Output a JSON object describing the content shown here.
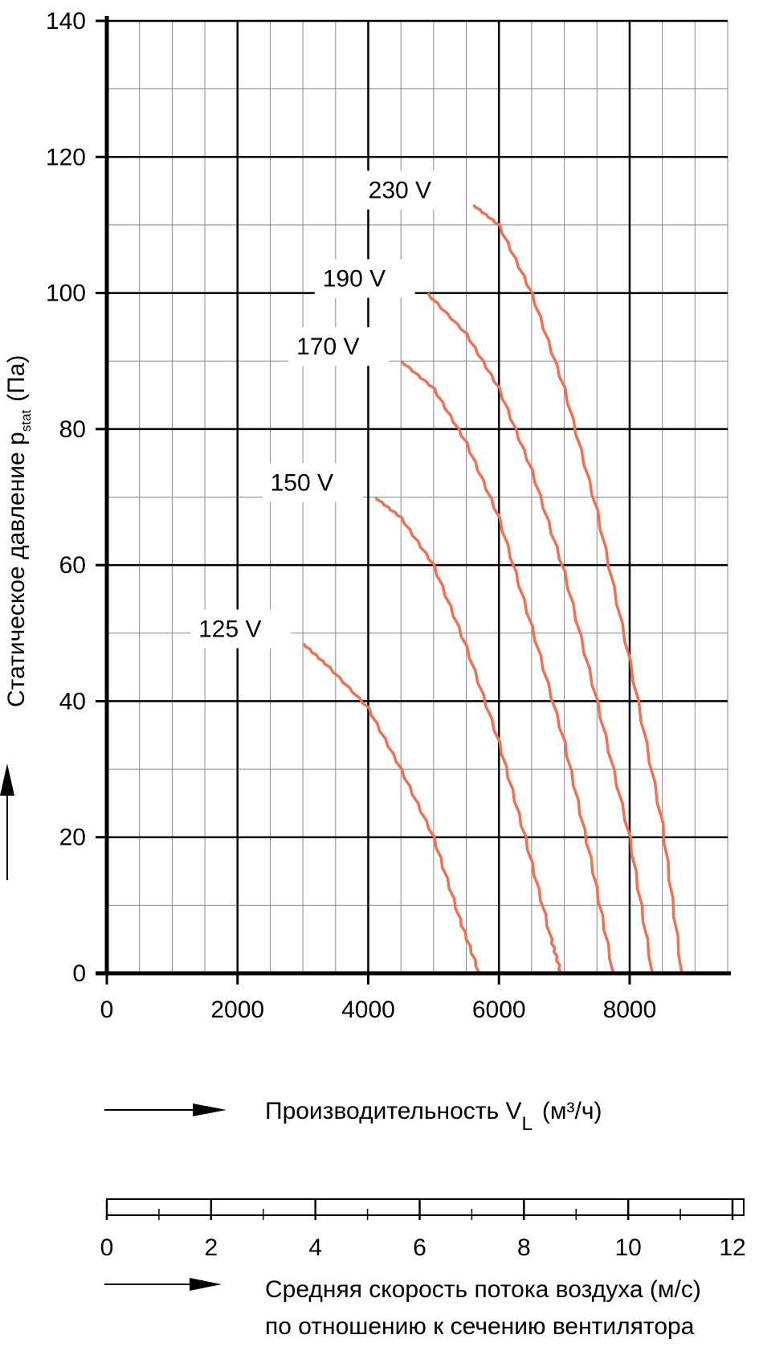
{
  "chart_data": {
    "type": "line",
    "ylabel": "Статическое давление p",
    "ylabel_sub": "stat",
    "ylabel_unit": "(Па)",
    "xlabel": "Производительность V",
    "xlabel_sub": "L",
    "xlabel_unit": "(м³/ч)",
    "xlim": [
      0,
      9500
    ],
    "ylim": [
      0,
      140
    ],
    "x_ticks": [
      0,
      2000,
      4000,
      6000,
      8000
    ],
    "y_ticks": [
      0,
      20,
      40,
      60,
      80,
      100,
      120,
      140
    ],
    "grid": true,
    "line_color": "#f07050",
    "series": [
      {
        "name": "125 V",
        "x": [
          3000,
          3400,
          4000,
          4500,
          5000,
          5400,
          5700
        ],
        "y": [
          48.5,
          45,
          39,
          30,
          20,
          8,
          0
        ]
      },
      {
        "name": "150 V",
        "x": [
          4100,
          4500,
          5000,
          5500,
          6000,
          6400,
          6800,
          6950
        ],
        "y": [
          70,
          67,
          60,
          48,
          34,
          20,
          5,
          0
        ]
      },
      {
        "name": "170 V",
        "x": [
          4500,
          5000,
          5500,
          6000,
          6500,
          7000,
          7400,
          7750
        ],
        "y": [
          90,
          86,
          78,
          67,
          51,
          34,
          17,
          0
        ]
      },
      {
        "name": "190 V",
        "x": [
          4900,
          5500,
          6000,
          6500,
          7000,
          7500,
          8000,
          8350
        ],
        "y": [
          100,
          94,
          86,
          74,
          59,
          40,
          20,
          0
        ]
      },
      {
        "name": "230 V",
        "x": [
          5600,
          6000,
          6500,
          7000,
          7500,
          8000,
          8500,
          8800
        ],
        "y": [
          113,
          110,
          100,
          86,
          68,
          46,
          22,
          0
        ]
      }
    ],
    "secondary_axis": {
      "label_line1": "Средняя скорость потока воздуха (м/с)",
      "label_line2": "по отношению к сечению вентилятора",
      "range": [
        0,
        12
      ],
      "ticks": [
        0,
        2,
        4,
        6,
        8,
        10,
        12
      ]
    }
  }
}
